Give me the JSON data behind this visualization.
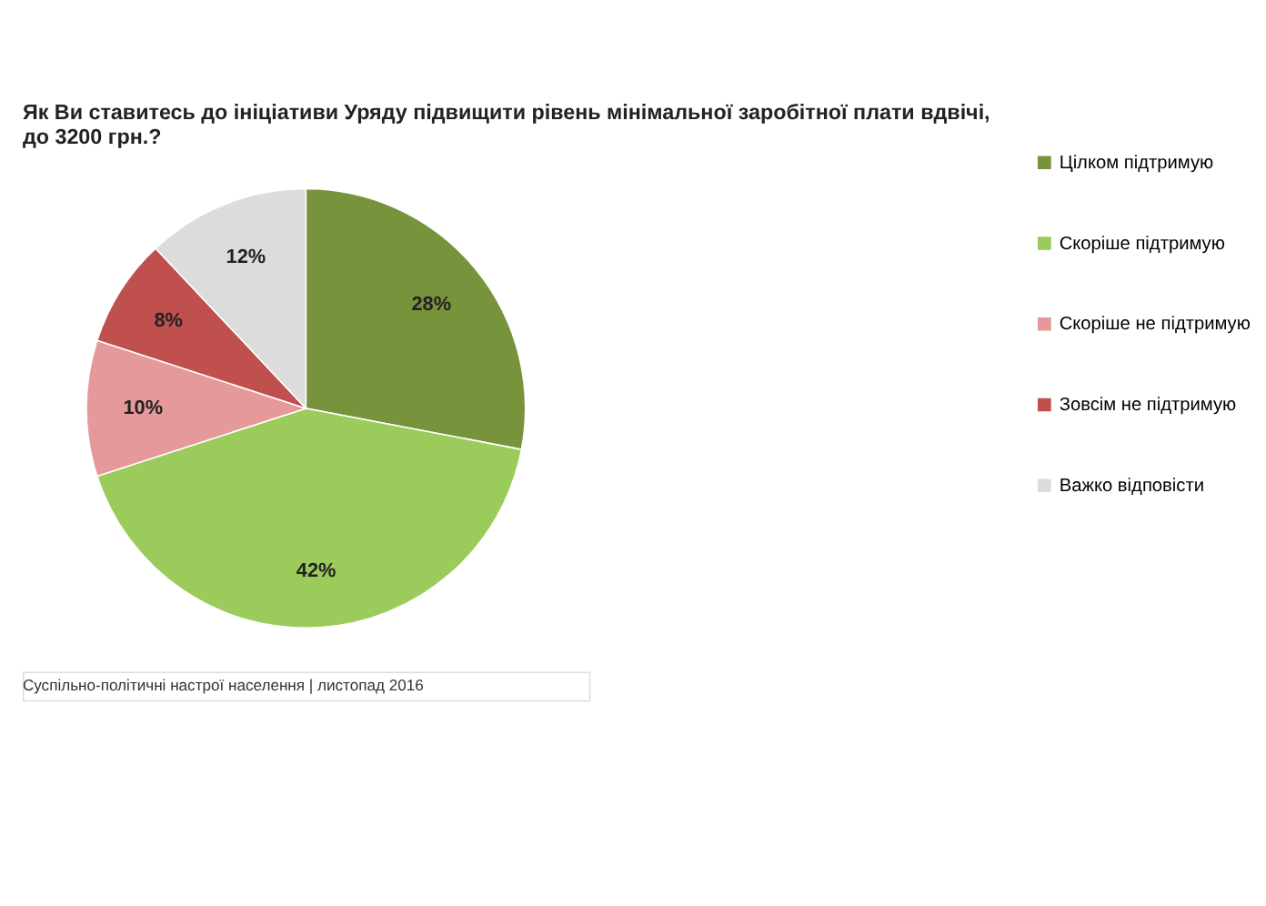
{
  "chart_data": {
    "type": "pie",
    "title": "Як Ви ставитесь до ініціативи Уряду підвищити рівень мінімальної заробітної плати вдвічі,\nдо 3200 грн.?",
    "categories": [
      "Цілком підтримую",
      "Скоріше  підтримую",
      "Скоріше не підтримую",
      "Зовсім не підтримую",
      "Важко відповісти"
    ],
    "values": [
      28,
      42,
      10,
      8,
      12
    ],
    "colors": [
      "#77933c",
      "#9bcb5a",
      "#e6999a",
      "#c0504d",
      "#dcdcdc"
    ],
    "value_labels": [
      "28%",
      "42%",
      "10%",
      "8%",
      "12%"
    ],
    "legend": "right",
    "annotations": [
      "Суспільно-політичні настрої населення  |  листопад 2016"
    ]
  }
}
